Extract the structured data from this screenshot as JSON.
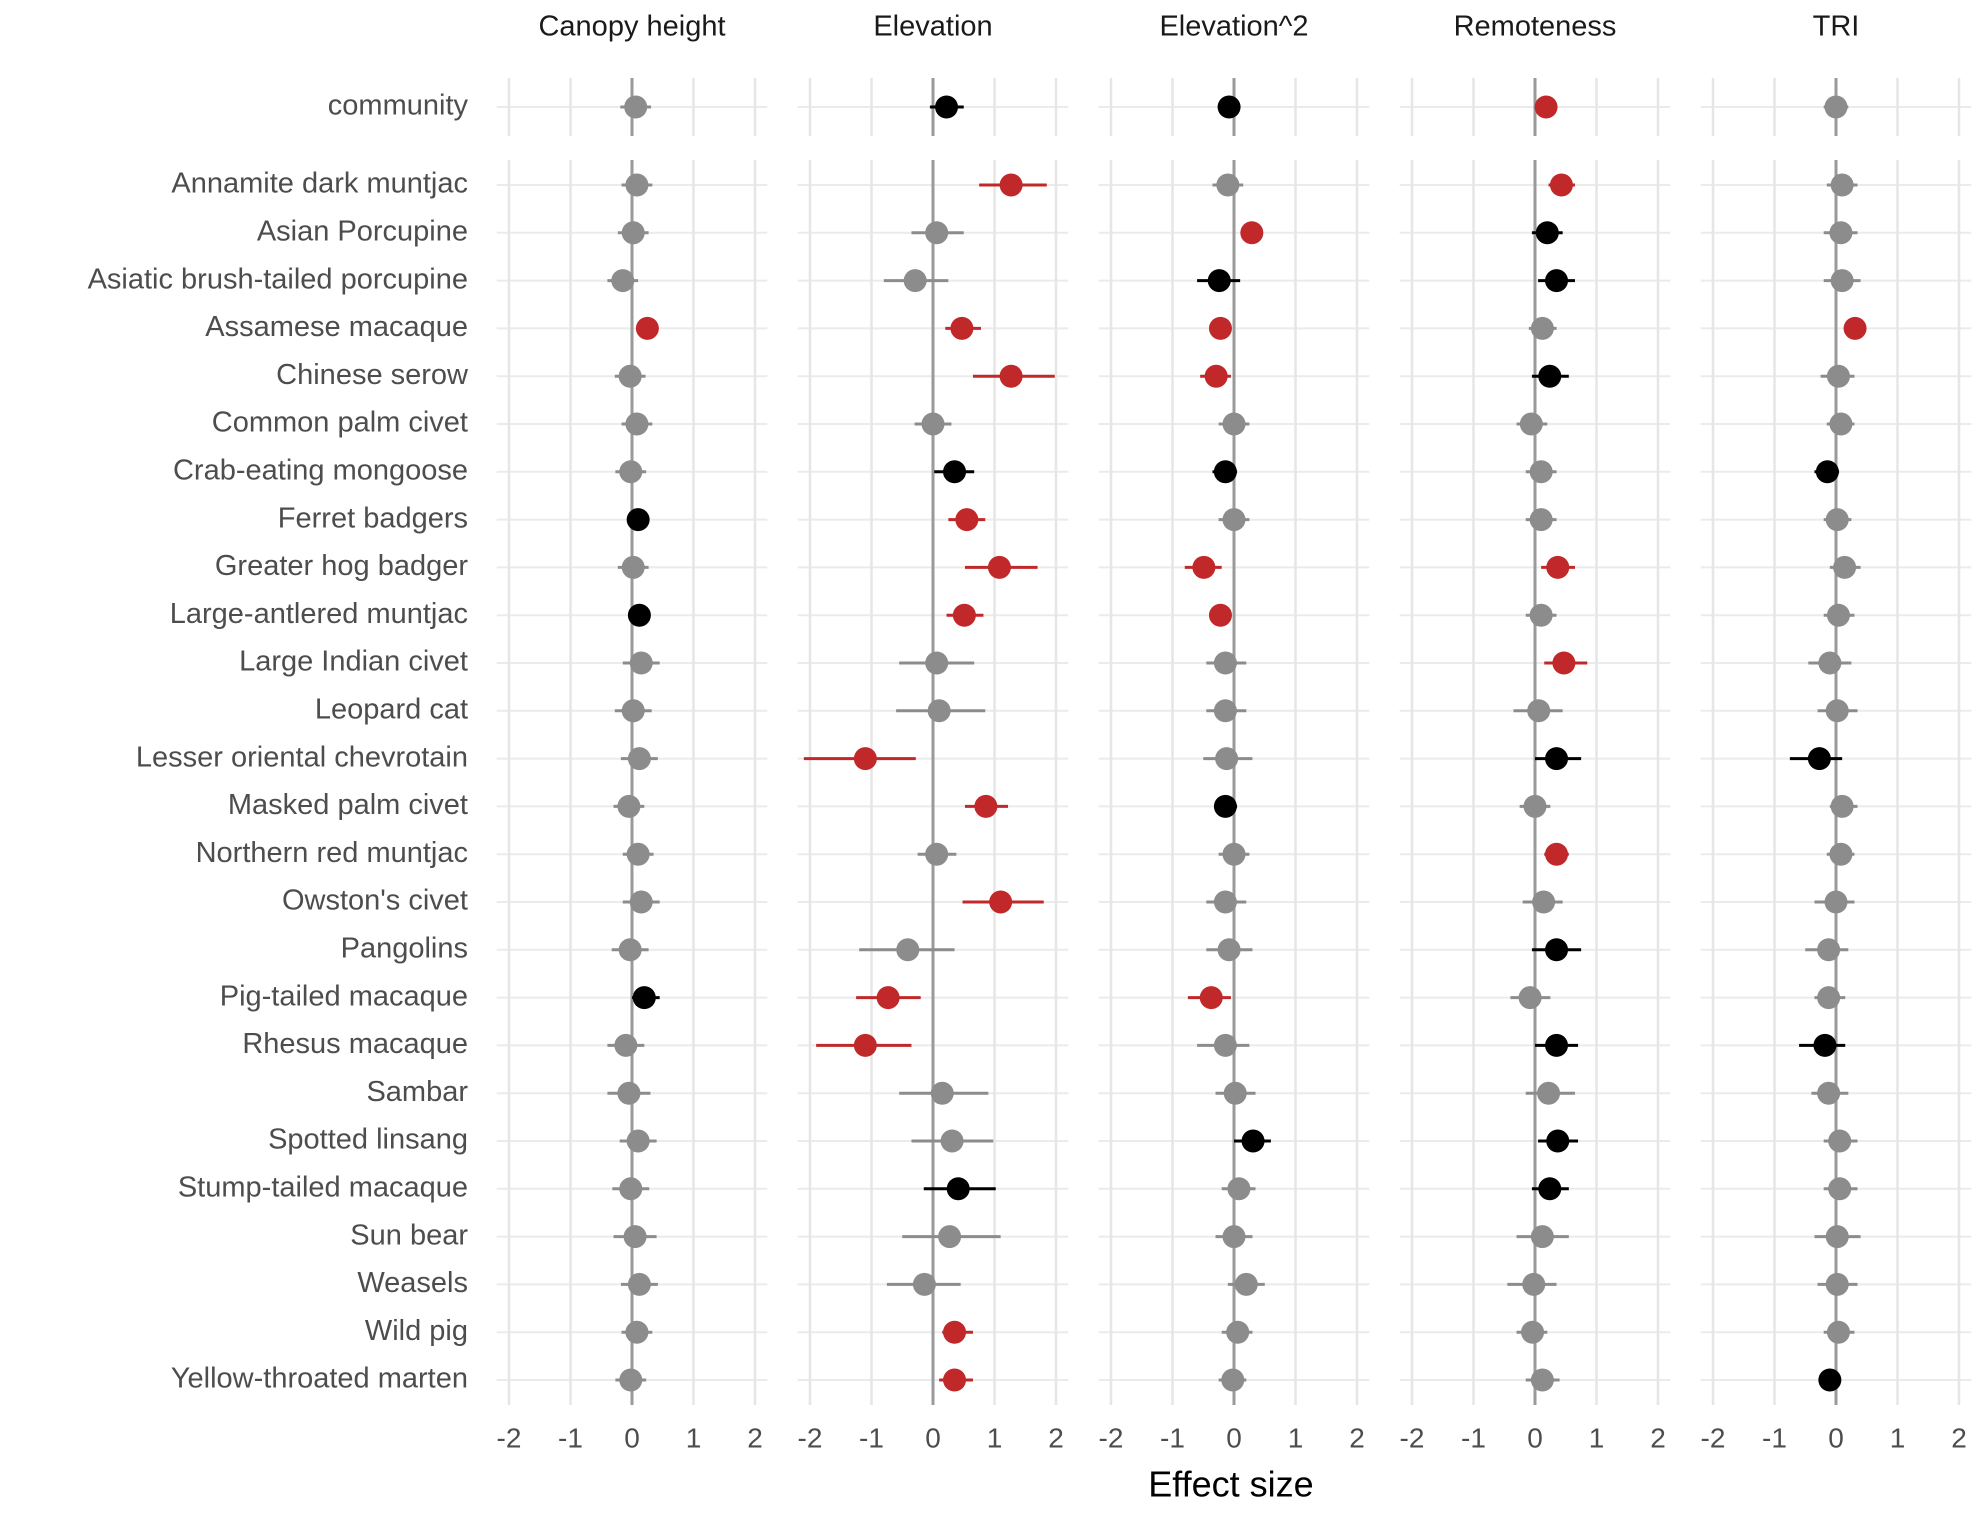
{
  "chart_data": {
    "type": "forest",
    "x_label": "Effect size",
    "categories": [
      "community",
      "Annamite dark muntjac",
      "Asian Porcupine",
      "Asiatic brush-tailed porcupine",
      "Assamese macaque",
      "Chinese serow",
      "Common palm civet",
      "Crab-eating mongoose",
      "Ferret badgers",
      "Greater hog badger",
      "Large-antlered muntjac",
      "Large Indian civet",
      "Leopard cat",
      "Lesser oriental chevrotain",
      "Masked palm civet",
      "Northern red muntjac",
      "Owston's civet",
      "Pangolins",
      "Pig-tailed macaque",
      "Rhesus macaque",
      "Sambar",
      "Spotted linsang",
      "Stump-tailed macaque",
      "Sun bear",
      "Weasels",
      "Wild pig",
      "Yellow-throated marten"
    ],
    "xlim": [
      -2.2,
      2.2
    ],
    "xticks": [
      -2,
      -1,
      0,
      1,
      2
    ],
    "grid": true,
    "series": [
      {
        "name": "Canopy height",
        "values": [
          0.06,
          0.08,
          0.02,
          -0.15,
          0.25,
          -0.03,
          0.08,
          -0.02,
          0.1,
          0.02,
          0.12,
          0.15,
          0.02,
          0.12,
          -0.05,
          0.1,
          0.15,
          -0.03,
          0.2,
          -0.1,
          -0.05,
          0.1,
          -0.02,
          0.05,
          0.12,
          0.08,
          -0.02
        ],
        "lower": [
          -0.19,
          -0.17,
          -0.23,
          -0.4,
          0.1,
          -0.28,
          -0.17,
          -0.27,
          -0.05,
          -0.23,
          -0.03,
          -0.15,
          -0.28,
          -0.18,
          -0.3,
          -0.15,
          -0.15,
          -0.33,
          0.0,
          -0.4,
          -0.4,
          -0.2,
          -0.32,
          -0.3,
          -0.18,
          -0.17,
          -0.27
        ],
        "upper": [
          0.31,
          0.33,
          0.27,
          0.1,
          0.4,
          0.22,
          0.33,
          0.23,
          0.25,
          0.27,
          0.27,
          0.45,
          0.32,
          0.42,
          0.2,
          0.35,
          0.45,
          0.27,
          0.45,
          0.2,
          0.3,
          0.4,
          0.28,
          0.4,
          0.42,
          0.33,
          0.23
        ],
        "colors": [
          "#8c8c8c",
          "#8c8c8c",
          "#8c8c8c",
          "#8c8c8c",
          "#c0282a",
          "#8c8c8c",
          "#8c8c8c",
          "#8c8c8c",
          "#000000",
          "#8c8c8c",
          "#000000",
          "#8c8c8c",
          "#8c8c8c",
          "#8c8c8c",
          "#8c8c8c",
          "#8c8c8c",
          "#8c8c8c",
          "#8c8c8c",
          "#000000",
          "#8c8c8c",
          "#8c8c8c",
          "#8c8c8c",
          "#8c8c8c",
          "#8c8c8c",
          "#8c8c8c",
          "#8c8c8c",
          "#8c8c8c"
        ]
      },
      {
        "name": "Elevation",
        "values": [
          0.22,
          1.27,
          0.06,
          -0.29,
          0.47,
          1.27,
          0.0,
          0.35,
          0.55,
          1.08,
          0.51,
          0.06,
          0.1,
          -1.1,
          0.86,
          0.06,
          1.1,
          -0.41,
          -0.73,
          -1.1,
          0.15,
          0.31,
          0.41,
          0.27,
          -0.14,
          0.35,
          0.35
        ],
        "lower": [
          -0.05,
          0.75,
          -0.35,
          -0.8,
          0.2,
          0.65,
          -0.3,
          0.02,
          0.25,
          0.52,
          0.22,
          -0.55,
          -0.6,
          -2.1,
          0.52,
          -0.25,
          0.48,
          -1.2,
          -1.25,
          -1.9,
          -0.55,
          -0.35,
          -0.15,
          -0.5,
          -0.75,
          0.15,
          0.1
        ],
        "upper": [
          0.5,
          1.85,
          0.5,
          0.25,
          0.78,
          1.98,
          0.3,
          0.67,
          0.85,
          1.7,
          0.82,
          0.67,
          0.85,
          -0.28,
          1.22,
          0.38,
          1.8,
          0.35,
          -0.2,
          -0.35,
          0.9,
          0.98,
          1.02,
          1.1,
          0.45,
          0.65,
          0.65
        ],
        "colors": [
          "#000000",
          "#c0282a",
          "#8c8c8c",
          "#8c8c8c",
          "#c0282a",
          "#c0282a",
          "#8c8c8c",
          "#000000",
          "#c0282a",
          "#c0282a",
          "#c0282a",
          "#8c8c8c",
          "#8c8c8c",
          "#c0282a",
          "#c0282a",
          "#8c8c8c",
          "#c0282a",
          "#8c8c8c",
          "#c0282a",
          "#c0282a",
          "#8c8c8c",
          "#8c8c8c",
          "#000000",
          "#8c8c8c",
          "#8c8c8c",
          "#c0282a",
          "#c0282a"
        ]
      },
      {
        "name": "Elevation^2",
        "values": [
          -0.08,
          -0.1,
          0.29,
          -0.24,
          -0.22,
          -0.29,
          0.0,
          -0.14,
          0.0,
          -0.49,
          -0.22,
          -0.14,
          -0.14,
          -0.12,
          -0.14,
          0.0,
          -0.14,
          -0.08,
          -0.37,
          -0.14,
          0.02,
          0.31,
          0.08,
          0.0,
          0.2,
          0.06,
          -0.02
        ],
        "lower": [
          -0.25,
          -0.35,
          0.15,
          -0.6,
          -0.4,
          -0.55,
          -0.25,
          -0.35,
          -0.25,
          -0.8,
          -0.4,
          -0.45,
          -0.45,
          -0.5,
          -0.3,
          -0.25,
          -0.45,
          -0.45,
          -0.75,
          -0.6,
          -0.3,
          0.0,
          -0.2,
          -0.3,
          -0.1,
          -0.2,
          -0.25
        ],
        "upper": [
          0.1,
          0.15,
          0.45,
          0.1,
          -0.05,
          -0.05,
          0.25,
          0.05,
          0.25,
          -0.2,
          -0.05,
          0.2,
          0.2,
          0.3,
          0.05,
          0.25,
          0.2,
          0.3,
          -0.05,
          0.25,
          0.35,
          0.6,
          0.35,
          0.3,
          0.5,
          0.3,
          0.2
        ],
        "colors": [
          "#000000",
          "#8c8c8c",
          "#c0282a",
          "#000000",
          "#c0282a",
          "#c0282a",
          "#8c8c8c",
          "#000000",
          "#8c8c8c",
          "#c0282a",
          "#c0282a",
          "#8c8c8c",
          "#8c8c8c",
          "#8c8c8c",
          "#000000",
          "#8c8c8c",
          "#8c8c8c",
          "#8c8c8c",
          "#c0282a",
          "#8c8c8c",
          "#8c8c8c",
          "#000000",
          "#8c8c8c",
          "#8c8c8c",
          "#8c8c8c",
          "#8c8c8c",
          "#8c8c8c"
        ]
      },
      {
        "name": "Remoteness",
        "values": [
          0.18,
          0.43,
          0.2,
          0.35,
          0.12,
          0.24,
          -0.06,
          0.1,
          0.1,
          0.37,
          0.1,
          0.47,
          0.06,
          0.35,
          0.0,
          0.35,
          0.14,
          0.35,
          -0.08,
          0.35,
          0.22,
          0.37,
          0.24,
          0.12,
          -0.02,
          -0.04,
          0.12
        ],
        "lower": [
          0.05,
          0.22,
          -0.05,
          0.05,
          -0.1,
          -0.05,
          -0.3,
          -0.15,
          -0.15,
          0.1,
          -0.15,
          0.15,
          -0.35,
          0.0,
          -0.25,
          0.15,
          -0.2,
          -0.05,
          -0.4,
          0.0,
          -0.15,
          0.05,
          -0.05,
          -0.3,
          -0.45,
          -0.3,
          -0.15
        ],
        "upper": [
          0.32,
          0.65,
          0.45,
          0.65,
          0.35,
          0.55,
          0.2,
          0.35,
          0.35,
          0.65,
          0.35,
          0.85,
          0.45,
          0.75,
          0.25,
          0.55,
          0.45,
          0.75,
          0.25,
          0.7,
          0.65,
          0.7,
          0.55,
          0.55,
          0.35,
          0.2,
          0.4
        ],
        "colors": [
          "#c0282a",
          "#c0282a",
          "#000000",
          "#000000",
          "#8c8c8c",
          "#000000",
          "#8c8c8c",
          "#8c8c8c",
          "#8c8c8c",
          "#c0282a",
          "#8c8c8c",
          "#c0282a",
          "#8c8c8c",
          "#000000",
          "#8c8c8c",
          "#c0282a",
          "#8c8c8c",
          "#000000",
          "#8c8c8c",
          "#000000",
          "#8c8c8c",
          "#000000",
          "#000000",
          "#8c8c8c",
          "#8c8c8c",
          "#8c8c8c",
          "#8c8c8c"
        ]
      },
      {
        "name": "TRI",
        "values": [
          0.0,
          0.1,
          0.08,
          0.1,
          0.31,
          0.04,
          0.08,
          -0.14,
          0.02,
          0.14,
          0.04,
          -0.1,
          0.02,
          -0.27,
          0.1,
          0.08,
          0.0,
          -0.12,
          -0.12,
          -0.18,
          -0.12,
          0.06,
          0.06,
          0.02,
          0.02,
          0.04,
          -0.1
        ],
        "lower": [
          -0.2,
          -0.15,
          -0.2,
          -0.2,
          0.15,
          -0.25,
          -0.15,
          -0.35,
          -0.2,
          -0.1,
          -0.2,
          -0.45,
          -0.3,
          -0.75,
          -0.1,
          -0.15,
          -0.35,
          -0.5,
          -0.35,
          -0.6,
          -0.4,
          -0.2,
          -0.2,
          -0.35,
          -0.3,
          -0.2,
          -0.2
        ],
        "upper": [
          0.2,
          0.35,
          0.35,
          0.4,
          0.45,
          0.3,
          0.3,
          0.05,
          0.25,
          0.4,
          0.3,
          0.25,
          0.35,
          0.1,
          0.35,
          0.3,
          0.3,
          0.2,
          0.15,
          0.15,
          0.2,
          0.35,
          0.35,
          0.4,
          0.35,
          0.3,
          0.05
        ],
        "colors": [
          "#8c8c8c",
          "#8c8c8c",
          "#8c8c8c",
          "#8c8c8c",
          "#c0282a",
          "#8c8c8c",
          "#8c8c8c",
          "#000000",
          "#8c8c8c",
          "#8c8c8c",
          "#8c8c8c",
          "#8c8c8c",
          "#8c8c8c",
          "#000000",
          "#8c8c8c",
          "#8c8c8c",
          "#8c8c8c",
          "#8c8c8c",
          "#8c8c8c",
          "#000000",
          "#8c8c8c",
          "#8c8c8c",
          "#8c8c8c",
          "#8c8c8c",
          "#8c8c8c",
          "#8c8c8c",
          "#000000"
        ]
      }
    ]
  }
}
